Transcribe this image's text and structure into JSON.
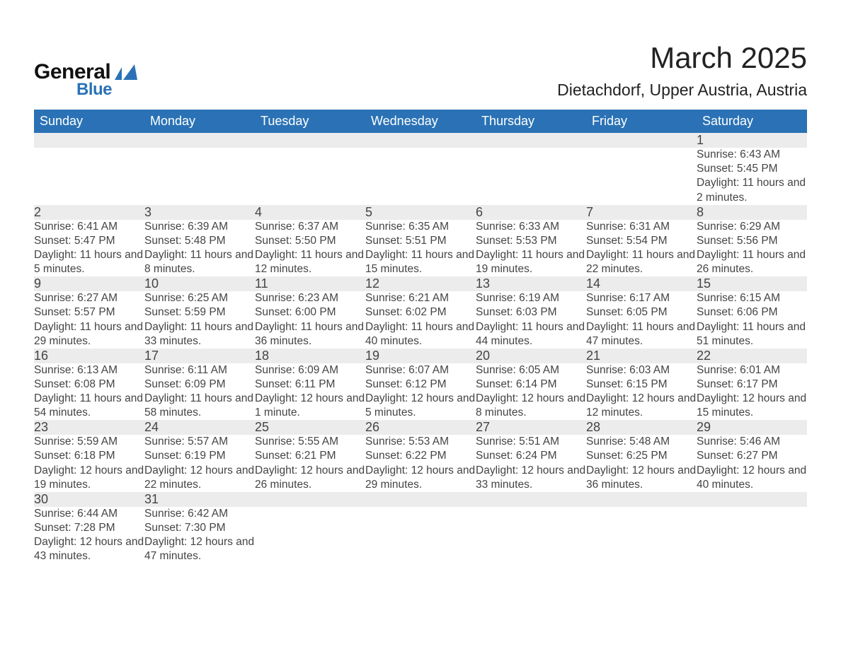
{
  "brand": {
    "line1": "General",
    "line2": "Blue",
    "accent": "#2a72b5"
  },
  "title": {
    "month": "March 2025",
    "location": "Dietachdorf, Upper Austria, Austria"
  },
  "calendar": {
    "header_bg": "#2a72b5",
    "header_fg": "#ffffff",
    "daynum_bg": "#ececec",
    "row_divider": "#2a72b5",
    "text_color": "#444444",
    "font_family": "Arial",
    "weekdays": [
      "Sunday",
      "Monday",
      "Tuesday",
      "Wednesday",
      "Thursday",
      "Friday",
      "Saturday"
    ],
    "weeks": [
      [
        null,
        null,
        null,
        null,
        null,
        null,
        {
          "day": 1,
          "sunrise": "6:43 AM",
          "sunset": "5:45 PM",
          "daylight": "11 hours and 2 minutes."
        }
      ],
      [
        {
          "day": 2,
          "sunrise": "6:41 AM",
          "sunset": "5:47 PM",
          "daylight": "11 hours and 5 minutes."
        },
        {
          "day": 3,
          "sunrise": "6:39 AM",
          "sunset": "5:48 PM",
          "daylight": "11 hours and 8 minutes."
        },
        {
          "day": 4,
          "sunrise": "6:37 AM",
          "sunset": "5:50 PM",
          "daylight": "11 hours and 12 minutes."
        },
        {
          "day": 5,
          "sunrise": "6:35 AM",
          "sunset": "5:51 PM",
          "daylight": "11 hours and 15 minutes."
        },
        {
          "day": 6,
          "sunrise": "6:33 AM",
          "sunset": "5:53 PM",
          "daylight": "11 hours and 19 minutes."
        },
        {
          "day": 7,
          "sunrise": "6:31 AM",
          "sunset": "5:54 PM",
          "daylight": "11 hours and 22 minutes."
        },
        {
          "day": 8,
          "sunrise": "6:29 AM",
          "sunset": "5:56 PM",
          "daylight": "11 hours and 26 minutes."
        }
      ],
      [
        {
          "day": 9,
          "sunrise": "6:27 AM",
          "sunset": "5:57 PM",
          "daylight": "11 hours and 29 minutes."
        },
        {
          "day": 10,
          "sunrise": "6:25 AM",
          "sunset": "5:59 PM",
          "daylight": "11 hours and 33 minutes."
        },
        {
          "day": 11,
          "sunrise": "6:23 AM",
          "sunset": "6:00 PM",
          "daylight": "11 hours and 36 minutes."
        },
        {
          "day": 12,
          "sunrise": "6:21 AM",
          "sunset": "6:02 PM",
          "daylight": "11 hours and 40 minutes."
        },
        {
          "day": 13,
          "sunrise": "6:19 AM",
          "sunset": "6:03 PM",
          "daylight": "11 hours and 44 minutes."
        },
        {
          "day": 14,
          "sunrise": "6:17 AM",
          "sunset": "6:05 PM",
          "daylight": "11 hours and 47 minutes."
        },
        {
          "day": 15,
          "sunrise": "6:15 AM",
          "sunset": "6:06 PM",
          "daylight": "11 hours and 51 minutes."
        }
      ],
      [
        {
          "day": 16,
          "sunrise": "6:13 AM",
          "sunset": "6:08 PM",
          "daylight": "11 hours and 54 minutes."
        },
        {
          "day": 17,
          "sunrise": "6:11 AM",
          "sunset": "6:09 PM",
          "daylight": "11 hours and 58 minutes."
        },
        {
          "day": 18,
          "sunrise": "6:09 AM",
          "sunset": "6:11 PM",
          "daylight": "12 hours and 1 minute."
        },
        {
          "day": 19,
          "sunrise": "6:07 AM",
          "sunset": "6:12 PM",
          "daylight": "12 hours and 5 minutes."
        },
        {
          "day": 20,
          "sunrise": "6:05 AM",
          "sunset": "6:14 PM",
          "daylight": "12 hours and 8 minutes."
        },
        {
          "day": 21,
          "sunrise": "6:03 AM",
          "sunset": "6:15 PM",
          "daylight": "12 hours and 12 minutes."
        },
        {
          "day": 22,
          "sunrise": "6:01 AM",
          "sunset": "6:17 PM",
          "daylight": "12 hours and 15 minutes."
        }
      ],
      [
        {
          "day": 23,
          "sunrise": "5:59 AM",
          "sunset": "6:18 PM",
          "daylight": "12 hours and 19 minutes."
        },
        {
          "day": 24,
          "sunrise": "5:57 AM",
          "sunset": "6:19 PM",
          "daylight": "12 hours and 22 minutes."
        },
        {
          "day": 25,
          "sunrise": "5:55 AM",
          "sunset": "6:21 PM",
          "daylight": "12 hours and 26 minutes."
        },
        {
          "day": 26,
          "sunrise": "5:53 AM",
          "sunset": "6:22 PM",
          "daylight": "12 hours and 29 minutes."
        },
        {
          "day": 27,
          "sunrise": "5:51 AM",
          "sunset": "6:24 PM",
          "daylight": "12 hours and 33 minutes."
        },
        {
          "day": 28,
          "sunrise": "5:48 AM",
          "sunset": "6:25 PM",
          "daylight": "12 hours and 36 minutes."
        },
        {
          "day": 29,
          "sunrise": "5:46 AM",
          "sunset": "6:27 PM",
          "daylight": "12 hours and 40 minutes."
        }
      ],
      [
        {
          "day": 30,
          "sunrise": "6:44 AM",
          "sunset": "7:28 PM",
          "daylight": "12 hours and 43 minutes."
        },
        {
          "day": 31,
          "sunrise": "6:42 AM",
          "sunset": "7:30 PM",
          "daylight": "12 hours and 47 minutes."
        },
        null,
        null,
        null,
        null,
        null
      ]
    ],
    "labels": {
      "sunrise": "Sunrise:",
      "sunset": "Sunset:",
      "daylight": "Daylight:"
    }
  }
}
